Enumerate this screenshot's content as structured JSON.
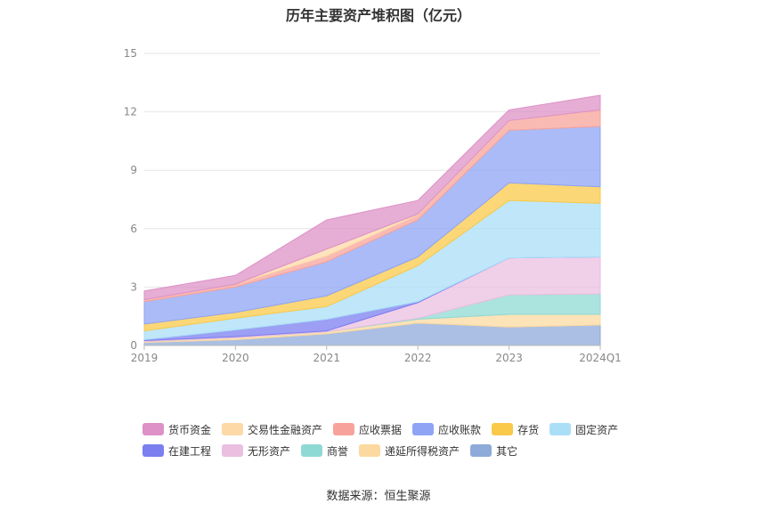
{
  "source_label": "数据来源：恒生聚源",
  "chart_data": {
    "type": "area",
    "stacked": true,
    "title": "历年主要资产堆积图（亿元）",
    "xlabel": "",
    "ylabel": "",
    "categories": [
      "2019",
      "2020",
      "2021",
      "2022",
      "2023",
      "2024Q1"
    ],
    "ylim": [
      0,
      15
    ],
    "yticks": [
      0,
      3,
      6,
      9,
      12,
      15
    ],
    "grid": true,
    "legend_position": "bottom",
    "series": [
      {
        "name": "其它",
        "color": "#8eaad9",
        "values": [
          0.15,
          0.3,
          0.6,
          1.15,
          0.95,
          1.05
        ]
      },
      {
        "name": "递延所得税资产",
        "color": "#fcd9a0",
        "values": [
          0.05,
          0.1,
          0.1,
          0.2,
          0.65,
          0.55
        ]
      },
      {
        "name": "商誉",
        "color": "#8fd9d4",
        "values": [
          0.0,
          0.0,
          0.0,
          0.05,
          1.0,
          1.05
        ]
      },
      {
        "name": "无形资产",
        "color": "#ebbfe0",
        "values": [
          0.05,
          0.05,
          0.05,
          0.8,
          1.9,
          1.9
        ]
      },
      {
        "name": "在建工程",
        "color": "#7b7ff0",
        "values": [
          0.05,
          0.35,
          0.6,
          0.05,
          0.0,
          0.0
        ]
      },
      {
        "name": "固定资产",
        "color": "#aadff7",
        "values": [
          0.45,
          0.6,
          0.65,
          1.85,
          2.95,
          2.75
        ]
      },
      {
        "name": "存货",
        "color": "#fac94a",
        "values": [
          0.35,
          0.3,
          0.55,
          0.45,
          0.9,
          0.85
        ]
      },
      {
        "name": "应收账款",
        "color": "#8fa4f5",
        "values": [
          1.15,
          1.3,
          1.75,
          1.9,
          2.7,
          3.1
        ]
      },
      {
        "name": "应收票据",
        "color": "#f7a39b",
        "values": [
          0.1,
          0.15,
          0.3,
          0.25,
          0.5,
          0.85
        ]
      },
      {
        "name": "交易性金融资产",
        "color": "#fdd9a8",
        "values": [
          0.0,
          0.0,
          0.35,
          0.05,
          0.0,
          0.0
        ]
      },
      {
        "name": "货币资金",
        "color": "#dd91c7",
        "values": [
          0.45,
          0.45,
          1.5,
          0.7,
          0.55,
          0.75
        ]
      }
    ]
  }
}
